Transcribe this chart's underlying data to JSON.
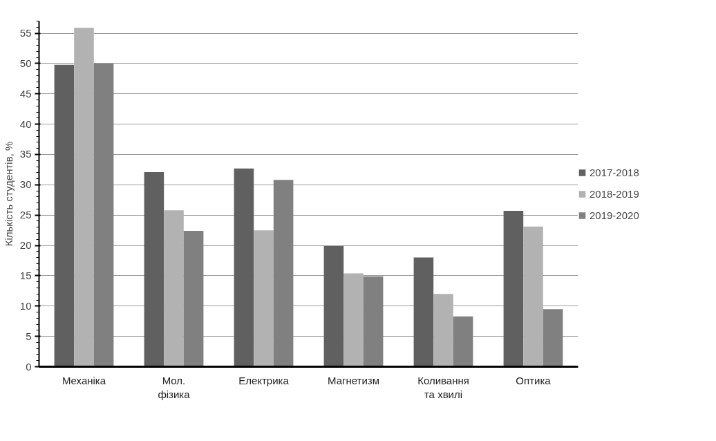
{
  "chart_data": {
    "type": "bar",
    "ylabel": "Кількість студентів, %",
    "categories": [
      "Механіка",
      "Мол.\nфізика",
      "Електрика",
      "Магнетизм",
      "Коливання\nта хвилі",
      "Оптика"
    ],
    "series": [
      {
        "name": "2017-2018",
        "color": "#606060",
        "values": [
          49.8,
          32.1,
          32.7,
          19.9,
          18.0,
          25.7
        ]
      },
      {
        "name": "2018-2019",
        "color": "#b2b2b2",
        "values": [
          55.9,
          25.8,
          22.5,
          15.4,
          12.0,
          23.1
        ]
      },
      {
        "name": "2019-2020",
        "color": "#808080",
        "values": [
          50.0,
          22.4,
          30.8,
          14.9,
          8.3,
          9.5
        ]
      }
    ],
    "ylim": [
      0,
      57
    ],
    "yticks": [
      0,
      5,
      10,
      15,
      20,
      25,
      30,
      35,
      40,
      45,
      50,
      55
    ],
    "grid": "y",
    "legend": "right"
  }
}
